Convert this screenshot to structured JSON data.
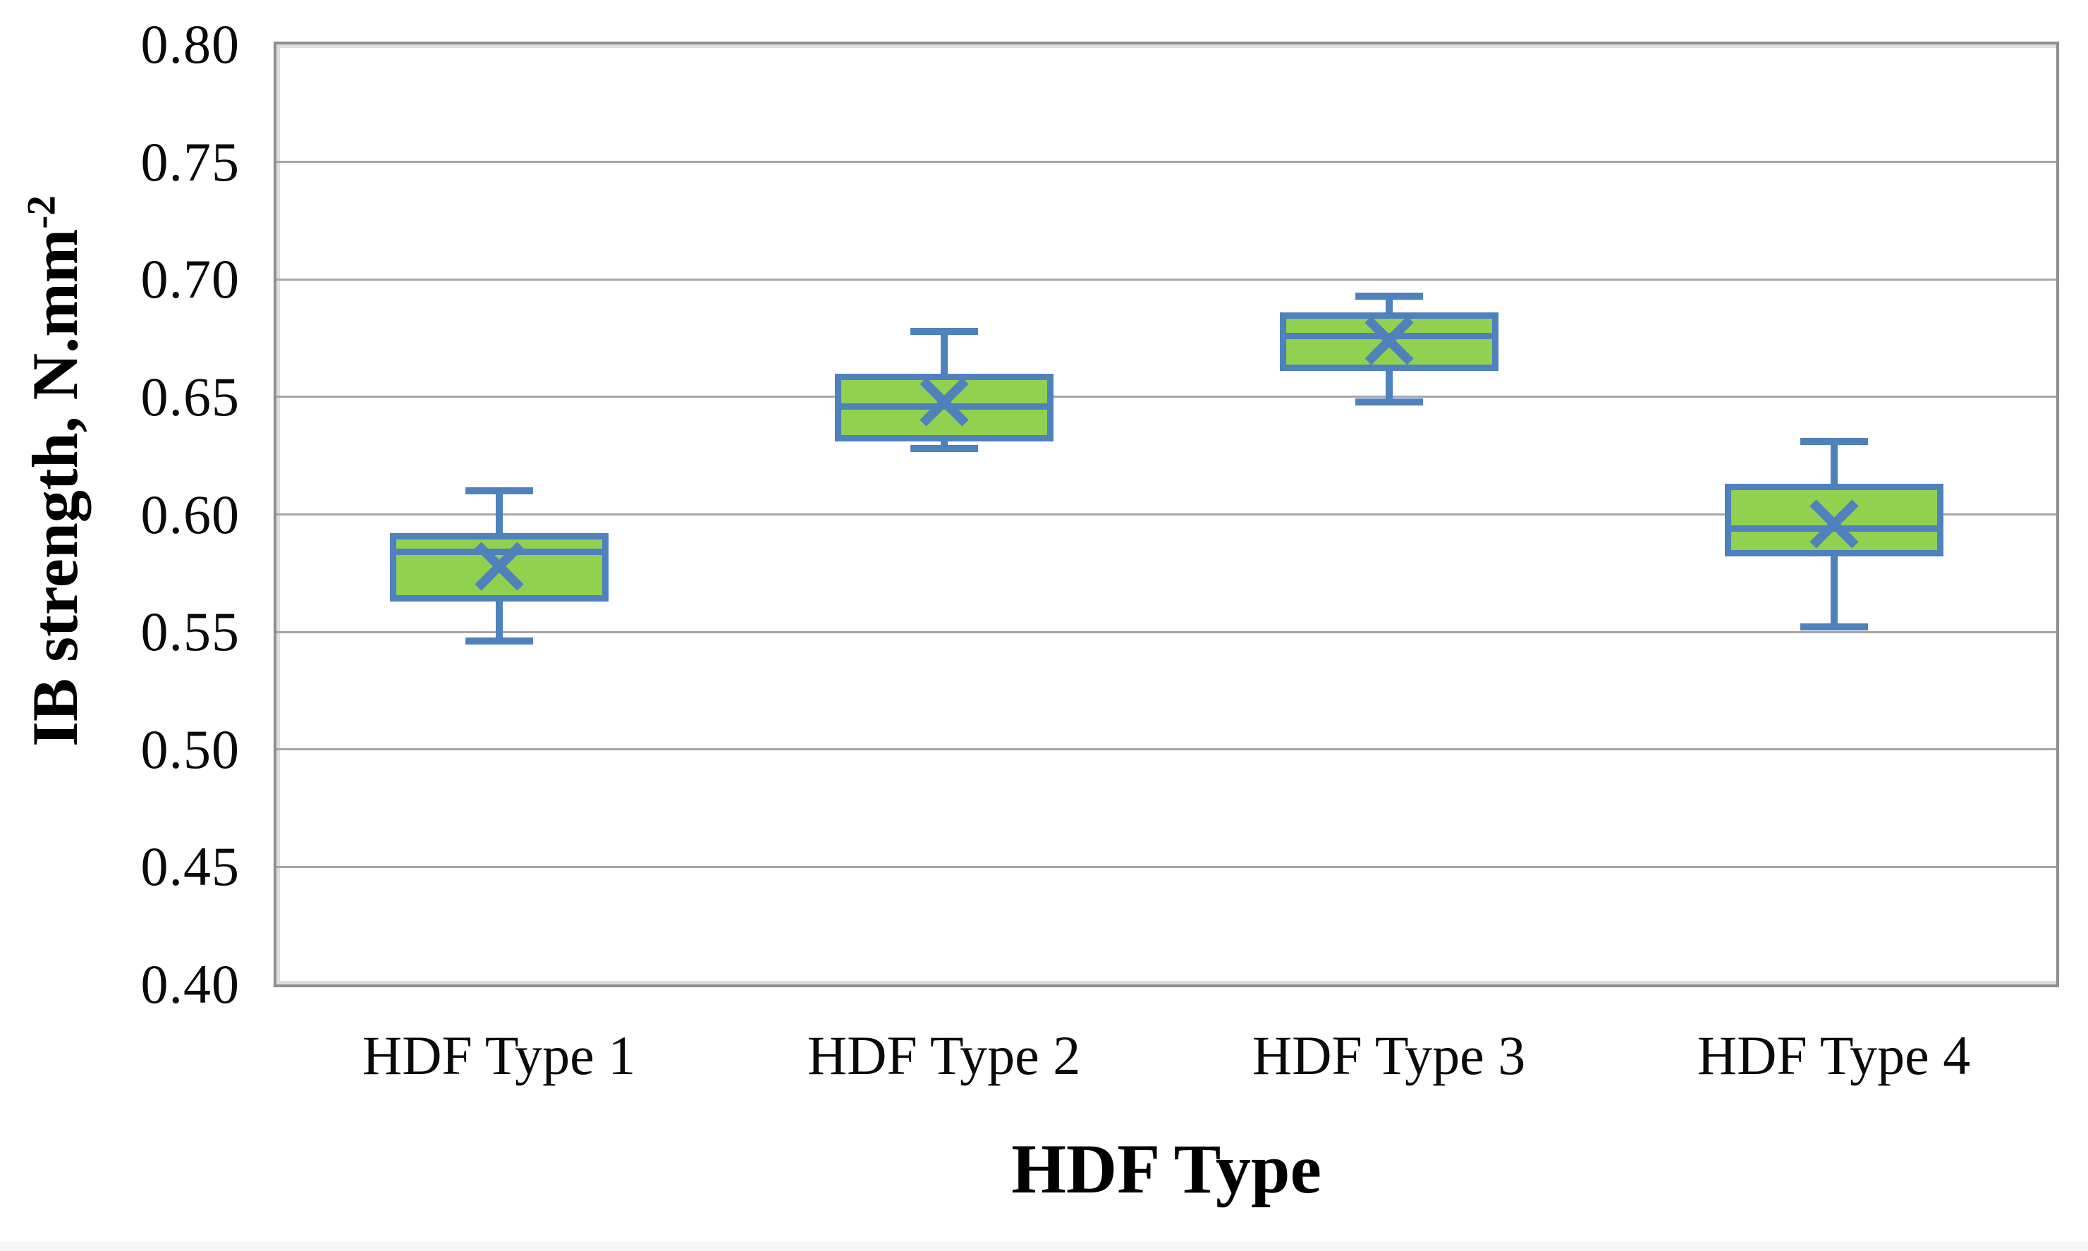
{
  "chart_data": {
    "type": "boxplot",
    "title": "",
    "xlabel": "HDF Type",
    "ylabel": "IB strength, N.mm-2",
    "ylabel_base": "IB strength, N.mm",
    "ylabel_sup": "-2",
    "categories": [
      "HDF Type 1",
      "HDF Type 2",
      "HDF Type 3",
      "HDF Type 4"
    ],
    "series": [
      {
        "name": "HDF Type 1",
        "whisker_low": 0.546,
        "q1": 0.563,
        "median": 0.584,
        "mean": 0.578,
        "q3": 0.592,
        "whisker_high": 0.61
      },
      {
        "name": "HDF Type 2",
        "whisker_low": 0.628,
        "q1": 0.631,
        "median": 0.646,
        "mean": 0.648,
        "q3": 0.66,
        "whisker_high": 0.678
      },
      {
        "name": "HDF Type 3",
        "whisker_low": 0.648,
        "q1": 0.661,
        "median": 0.676,
        "mean": 0.674,
        "q3": 0.686,
        "whisker_high": 0.693
      },
      {
        "name": "HDF Type 4",
        "whisker_low": 0.552,
        "q1": 0.582,
        "median": 0.594,
        "mean": 0.596,
        "q3": 0.613,
        "whisker_high": 0.631
      }
    ],
    "ylim": [
      0.4,
      0.8
    ],
    "ytick_step": 0.05,
    "ytick_labels": [
      "0.80",
      "0.75",
      "0.70",
      "0.65",
      "0.60",
      "0.55",
      "0.50",
      "0.45",
      "0.40"
    ],
    "grid": true,
    "legend": false,
    "colors": {
      "box_fill": "#92D050",
      "box_border": "#4F81BD",
      "whisker": "#4F81BD",
      "mean_marker": "#4F81BD",
      "gridline": "#A6A6A6",
      "plot_border": "#8E8E8E",
      "text": "#000000"
    }
  }
}
